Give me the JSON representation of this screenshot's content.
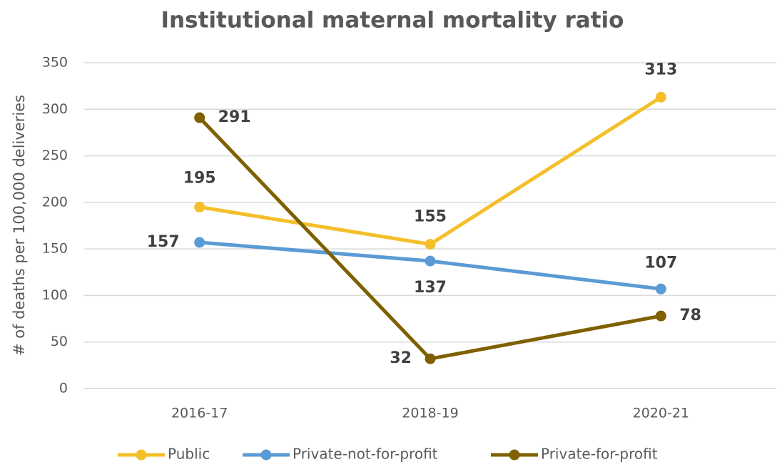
{
  "chart_data": {
    "type": "line",
    "title": "Institutional maternal mortality ratio",
    "y_label": "# of deaths per 100,000 deliveries",
    "categories": [
      "2016-17",
      "2018-19",
      "2020-21"
    ],
    "series": [
      {
        "name": "Public",
        "color": "#f4bf2a",
        "values": [
          195,
          155,
          313
        ]
      },
      {
        "name": "Private-not-for-profit",
        "color": "#5b9bd5",
        "values": [
          157,
          137,
          107
        ]
      },
      {
        "name": "Private-for-profit",
        "color": "#7f6000",
        "values": [
          291,
          32,
          78
        ]
      }
    ],
    "ylim": [
      0,
      350
    ],
    "yticks": [
      0,
      50,
      100,
      150,
      200,
      250,
      300,
      350
    ],
    "grid": true,
    "legend": "bottom"
  }
}
